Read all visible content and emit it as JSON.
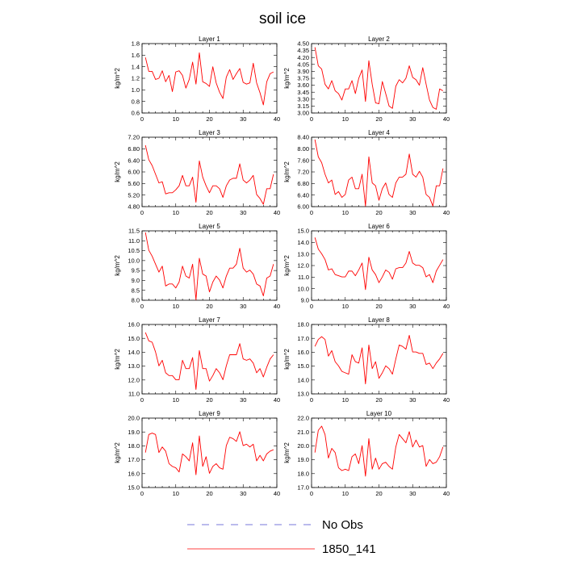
{
  "title": "soil ice",
  "legend": [
    {
      "label": "No Obs",
      "color": "#4b4bd0",
      "dash": true
    },
    {
      "label": "1850_141",
      "color": "#ff0000",
      "dash": false
    }
  ],
  "chart_data": [
    {
      "type": "line",
      "title": "Layer 1",
      "ylabel": "kg/m^2",
      "xlim": [
        0,
        40
      ],
      "ylim": [
        0.6,
        1.8
      ],
      "xticks": [
        0,
        10,
        20,
        30,
        40
      ],
      "yticks": [
        "0.6",
        "0.8",
        "1.0",
        "1.2",
        "1.4",
        "1.6",
        "1.8"
      ],
      "series": [
        {
          "name": "1850_141",
          "x": [
            1,
            2,
            3,
            4,
            5,
            6,
            7,
            8,
            9,
            10,
            11,
            12,
            13,
            14,
            15,
            16,
            17,
            18,
            19,
            20,
            21,
            22,
            23,
            24,
            25,
            26,
            27,
            28,
            29,
            30,
            31,
            32,
            33,
            34,
            35,
            36,
            37,
            38,
            39
          ],
          "values": [
            1.56,
            1.32,
            1.32,
            1.18,
            1.2,
            1.33,
            1.14,
            1.25,
            0.97,
            1.31,
            1.33,
            1.25,
            1.03,
            1.18,
            1.48,
            1.1,
            1.64,
            1.14,
            1.11,
            1.06,
            1.4,
            1.12,
            0.96,
            0.85,
            1.22,
            1.35,
            1.18,
            1.28,
            1.37,
            1.13,
            1.1,
            1.12,
            1.46,
            1.12,
            0.95,
            0.74,
            1.14,
            1.28,
            1.31
          ]
        }
      ]
    },
    {
      "type": "line",
      "title": "Layer 2",
      "ylabel": "kg/m^2",
      "xlim": [
        0,
        40
      ],
      "ylim": [
        3.0,
        4.5
      ],
      "xticks": [
        0,
        10,
        20,
        30,
        40
      ],
      "yticks": [
        "3.00",
        "3.15",
        "3.30",
        "3.45",
        "3.60",
        "3.75",
        "3.90",
        "4.05",
        "4.20",
        "4.35",
        "4.50"
      ],
      "series": [
        {
          "name": "1850_141",
          "x": [
            1,
            2,
            3,
            4,
            5,
            6,
            7,
            8,
            9,
            10,
            11,
            12,
            13,
            14,
            15,
            16,
            17,
            18,
            19,
            20,
            21,
            22,
            23,
            24,
            25,
            26,
            27,
            28,
            29,
            30,
            31,
            32,
            33,
            34,
            35,
            36,
            37,
            38,
            39
          ],
          "values": [
            4.42,
            4.02,
            3.95,
            3.62,
            3.52,
            3.7,
            3.48,
            3.42,
            3.28,
            3.52,
            3.52,
            3.7,
            3.42,
            3.75,
            3.93,
            3.25,
            4.13,
            3.62,
            3.22,
            3.2,
            3.68,
            3.42,
            3.15,
            3.1,
            3.58,
            3.72,
            3.65,
            3.75,
            4.02,
            3.77,
            3.72,
            3.6,
            3.98,
            3.62,
            3.28,
            3.12,
            3.08,
            3.52,
            3.48
          ]
        }
      ]
    },
    {
      "type": "line",
      "title": "Layer 3",
      "ylabel": "kg/m^2",
      "xlim": [
        0,
        40
      ],
      "ylim": [
        4.8,
        7.2
      ],
      "xticks": [
        0,
        10,
        20,
        30,
        40
      ],
      "yticks": [
        "4.80",
        "5.20",
        "5.60",
        "6.00",
        "6.40",
        "6.80",
        "7.20"
      ],
      "series": [
        {
          "name": "1850_141",
          "x": [
            1,
            2,
            3,
            4,
            5,
            6,
            7,
            8,
            9,
            10,
            11,
            12,
            13,
            14,
            15,
            16,
            17,
            18,
            19,
            20,
            21,
            22,
            23,
            24,
            25,
            26,
            27,
            28,
            29,
            30,
            31,
            32,
            33,
            34,
            35,
            36,
            37,
            38,
            39
          ],
          "values": [
            6.92,
            6.42,
            6.22,
            5.92,
            5.62,
            5.66,
            5.24,
            5.28,
            5.28,
            5.38,
            5.52,
            5.88,
            5.52,
            5.52,
            5.82,
            4.95,
            6.38,
            5.82,
            5.52,
            5.28,
            5.52,
            5.52,
            5.42,
            5.12,
            5.52,
            5.72,
            5.78,
            5.78,
            6.28,
            5.72,
            5.62,
            5.72,
            5.88,
            5.22,
            5.08,
            4.88,
            5.42,
            5.42,
            5.92
          ]
        }
      ]
    },
    {
      "type": "line",
      "title": "Layer 4",
      "ylabel": "kg/m^2",
      "xlim": [
        0,
        40
      ],
      "ylim": [
        6.0,
        8.4
      ],
      "xticks": [
        0,
        10,
        20,
        30,
        40
      ],
      "yticks": [
        "6.00",
        "6.40",
        "6.80",
        "7.20",
        "7.60",
        "8.00",
        "8.40"
      ],
      "series": [
        {
          "name": "1850_141",
          "x": [
            1,
            2,
            3,
            4,
            5,
            6,
            7,
            8,
            9,
            10,
            11,
            12,
            13,
            14,
            15,
            16,
            17,
            18,
            19,
            20,
            21,
            22,
            23,
            24,
            25,
            26,
            27,
            28,
            29,
            30,
            31,
            32,
            33,
            34,
            35,
            36,
            37,
            38,
            39
          ],
          "values": [
            8.32,
            7.72,
            7.52,
            7.12,
            6.82,
            6.92,
            6.42,
            6.52,
            6.32,
            6.42,
            6.92,
            7.02,
            6.62,
            6.62,
            7.12,
            6.02,
            7.72,
            6.82,
            6.72,
            6.22,
            6.62,
            6.82,
            6.42,
            6.32,
            6.82,
            7.02,
            7.02,
            7.12,
            7.82,
            7.12,
            7.02,
            7.22,
            7.02,
            6.42,
            6.32,
            6.02,
            6.72,
            6.72,
            7.32
          ]
        }
      ]
    },
    {
      "type": "line",
      "title": "Layer 5",
      "ylabel": "kg/m^2",
      "xlim": [
        0,
        40
      ],
      "ylim": [
        8.0,
        11.5
      ],
      "xticks": [
        0,
        10,
        20,
        30,
        40
      ],
      "yticks": [
        "8.0",
        "8.5",
        "9.0",
        "9.5",
        "10.0",
        "10.5",
        "11.0",
        "11.5"
      ],
      "series": [
        {
          "name": "1850_141",
          "x": [
            1,
            2,
            3,
            4,
            5,
            6,
            7,
            8,
            9,
            10,
            11,
            12,
            13,
            14,
            15,
            16,
            17,
            18,
            19,
            20,
            21,
            22,
            23,
            24,
            25,
            26,
            27,
            28,
            29,
            30,
            31,
            32,
            33,
            34,
            35,
            36,
            37,
            38,
            39
          ],
          "values": [
            11.42,
            10.52,
            10.22,
            9.82,
            9.42,
            9.72,
            8.72,
            8.82,
            8.82,
            8.62,
            8.92,
            9.72,
            9.22,
            9.12,
            9.82,
            8.02,
            10.12,
            9.32,
            9.22,
            8.42,
            8.92,
            9.22,
            9.02,
            8.62,
            9.22,
            9.62,
            9.62,
            9.82,
            10.62,
            9.62,
            9.42,
            9.52,
            9.32,
            8.82,
            8.72,
            8.22,
            9.12,
            9.22,
            9.82
          ]
        }
      ]
    },
    {
      "type": "line",
      "title": "Layer 6",
      "ylabel": "kg/m^2",
      "xlim": [
        0,
        40
      ],
      "ylim": [
        9.0,
        15.0
      ],
      "xticks": [
        0,
        10,
        20,
        30,
        40
      ],
      "yticks": [
        "9.0",
        "10.0",
        "11.0",
        "12.0",
        "13.0",
        "14.0",
        "15.0"
      ],
      "series": [
        {
          "name": "1850_141",
          "x": [
            1,
            2,
            3,
            4,
            5,
            6,
            7,
            8,
            9,
            10,
            11,
            12,
            13,
            14,
            15,
            16,
            17,
            18,
            19,
            20,
            21,
            22,
            23,
            24,
            25,
            26,
            27,
            28,
            29,
            30,
            31,
            32,
            33,
            34,
            35,
            36,
            37,
            38,
            39
          ],
          "values": [
            14.42,
            13.42,
            13.02,
            12.52,
            11.62,
            11.72,
            11.22,
            11.12,
            11.02,
            11.02,
            11.52,
            11.52,
            11.12,
            11.62,
            12.22,
            9.92,
            12.72,
            11.62,
            11.22,
            10.52,
            11.02,
            11.62,
            11.42,
            10.82,
            11.72,
            11.82,
            11.82,
            12.22,
            13.22,
            12.22,
            12.02,
            12.02,
            11.82,
            11.02,
            11.22,
            10.52,
            11.52,
            12.02,
            12.52
          ]
        }
      ]
    },
    {
      "type": "line",
      "title": "Layer 7",
      "ylabel": "kg/m^2",
      "xlim": [
        0,
        40
      ],
      "ylim": [
        11.0,
        16.0
      ],
      "xticks": [
        0,
        10,
        20,
        30,
        40
      ],
      "yticks": [
        "11.0",
        "12.0",
        "13.0",
        "14.0",
        "15.0",
        "16.0"
      ],
      "series": [
        {
          "name": "1850_141",
          "x": [
            1,
            2,
            3,
            4,
            5,
            6,
            7,
            8,
            9,
            10,
            11,
            12,
            13,
            14,
            15,
            16,
            17,
            18,
            19,
            20,
            21,
            22,
            23,
            24,
            25,
            26,
            27,
            28,
            29,
            30,
            31,
            32,
            33,
            34,
            35,
            36,
            37,
            38,
            39
          ],
          "values": [
            15.42,
            14.82,
            14.72,
            14.02,
            13.02,
            13.42,
            12.52,
            12.32,
            12.32,
            12.02,
            12.02,
            13.42,
            12.82,
            12.82,
            13.62,
            11.32,
            14.12,
            12.82,
            12.82,
            11.92,
            12.32,
            12.82,
            12.52,
            12.02,
            13.02,
            13.82,
            13.82,
            13.82,
            14.62,
            13.52,
            13.42,
            13.52,
            13.22,
            12.52,
            12.82,
            12.22,
            12.92,
            13.52,
            13.82
          ]
        }
      ]
    },
    {
      "type": "line",
      "title": "Layer 8",
      "ylabel": "kg/m^2",
      "xlim": [
        0,
        40
      ],
      "ylim": [
        13.0,
        18.0
      ],
      "xticks": [
        0,
        10,
        20,
        30,
        40
      ],
      "yticks": [
        "13.0",
        "14.0",
        "15.0",
        "16.0",
        "17.0",
        "18.0"
      ],
      "series": [
        {
          "name": "1850_141",
          "x": [
            1,
            2,
            3,
            4,
            5,
            6,
            7,
            8,
            9,
            10,
            11,
            12,
            13,
            14,
            15,
            16,
            17,
            18,
            19,
            20,
            21,
            22,
            23,
            24,
            25,
            26,
            27,
            28,
            29,
            30,
            31,
            32,
            33,
            34,
            35,
            36,
            37,
            38,
            39
          ],
          "values": [
            16.42,
            16.92,
            17.12,
            16.92,
            15.72,
            16.12,
            15.32,
            15.02,
            14.62,
            14.52,
            14.42,
            15.82,
            15.32,
            15.22,
            16.32,
            13.72,
            16.52,
            14.82,
            15.32,
            14.12,
            14.52,
            15.02,
            14.82,
            14.42,
            15.52,
            16.52,
            16.42,
            16.22,
            17.22,
            16.02,
            16.02,
            15.92,
            15.92,
            15.12,
            15.22,
            14.82,
            15.22,
            15.52,
            15.92
          ]
        }
      ]
    },
    {
      "type": "line",
      "title": "Layer 9",
      "ylabel": "kg/m^2",
      "xlim": [
        0,
        40
      ],
      "ylim": [
        15.0,
        20.0
      ],
      "xticks": [
        0,
        10,
        20,
        30,
        40
      ],
      "yticks": [
        "15.0",
        "16.0",
        "17.0",
        "18.0",
        "19.0",
        "20.0"
      ],
      "series": [
        {
          "name": "1850_141",
          "x": [
            1,
            2,
            3,
            4,
            5,
            6,
            7,
            8,
            9,
            10,
            11,
            12,
            13,
            14,
            15,
            16,
            17,
            18,
            19,
            20,
            21,
            22,
            23,
            24,
            25,
            26,
            27,
            28,
            29,
            30,
            31,
            32,
            33,
            34,
            35,
            36,
            37,
            38,
            39
          ],
          "values": [
            17.52,
            18.82,
            18.92,
            18.82,
            17.52,
            17.92,
            17.62,
            16.72,
            16.52,
            16.42,
            16.12,
            17.42,
            17.22,
            16.92,
            18.22,
            15.92,
            18.72,
            16.52,
            17.22,
            16.02,
            16.52,
            16.72,
            16.42,
            16.32,
            18.02,
            18.62,
            18.52,
            18.32,
            19.02,
            18.02,
            18.12,
            17.92,
            18.12,
            16.92,
            17.32,
            16.92,
            17.42,
            17.62,
            17.72
          ]
        }
      ]
    },
    {
      "type": "line",
      "title": "Layer 10",
      "ylabel": "kg/m^2",
      "xlim": [
        0,
        40
      ],
      "ylim": [
        17.0,
        22.0
      ],
      "xticks": [
        0,
        10,
        20,
        30,
        40
      ],
      "yticks": [
        "17.0",
        "18.0",
        "19.0",
        "20.0",
        "21.0",
        "22.0"
      ],
      "series": [
        {
          "name": "1850_141",
          "x": [
            1,
            2,
            3,
            4,
            5,
            6,
            7,
            8,
            9,
            10,
            11,
            12,
            13,
            14,
            15,
            16,
            17,
            18,
            19,
            20,
            21,
            22,
            23,
            24,
            25,
            26,
            27,
            28,
            29,
            30,
            31,
            32,
            33,
            34,
            35,
            36,
            37,
            38,
            39
          ],
          "values": [
            19.52,
            21.12,
            21.42,
            20.82,
            19.12,
            19.82,
            19.52,
            18.42,
            18.22,
            18.32,
            18.22,
            19.22,
            19.42,
            18.72,
            20.02,
            17.82,
            20.52,
            18.32,
            19.12,
            18.32,
            18.72,
            18.82,
            18.52,
            18.32,
            19.92,
            20.82,
            20.52,
            20.22,
            21.02,
            19.92,
            20.42,
            19.92,
            20.02,
            18.52,
            19.02,
            18.72,
            18.82,
            19.22,
            19.92
          ]
        }
      ]
    }
  ]
}
